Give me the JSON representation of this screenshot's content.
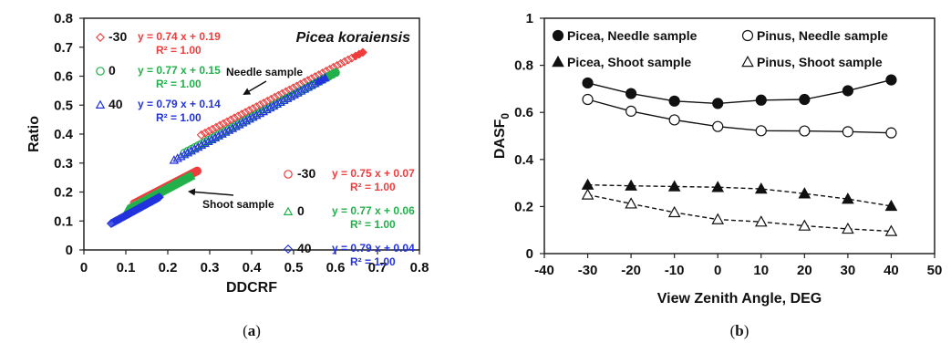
{
  "chart_data": [
    {
      "type": "scatter",
      "panel_label": "(a)",
      "panel_letter": "a",
      "title": "Picea koraiensis",
      "xlabel": "DDCRF",
      "ylabel": "Ratio",
      "xlim": [
        0,
        0.8
      ],
      "ylim": [
        0,
        0.8
      ],
      "x_ticks": [
        "0",
        "0.1",
        "0.2",
        "0.3",
        "0.4",
        "0.5",
        "0.6",
        "0.7",
        "0.8"
      ],
      "y_ticks": [
        "0",
        "0.1",
        "0.2",
        "0.3",
        "0.4",
        "0.5",
        "0.6",
        "0.7",
        "0.8"
      ],
      "grid": false,
      "annotations": {
        "needle": "Needle sample",
        "shoot": "Shoot sample"
      },
      "series": [
        {
          "group": "needle",
          "name": "-30",
          "marker": "diamond",
          "color": "#f03c3c",
          "slope": 0.74,
          "intercept": 0.19,
          "x_range": [
            0.28,
            0.665
          ],
          "equation": "y = 0.74 x + 0.19",
          "r2": "R² = 1.00"
        },
        {
          "group": "needle",
          "name": "0",
          "marker": "circle",
          "color": "#22b04a",
          "slope": 0.77,
          "intercept": 0.15,
          "x_range": [
            0.24,
            0.6
          ],
          "equation": "y = 0.77 x + 0.15",
          "r2": "R² = 1.00"
        },
        {
          "group": "needle",
          "name": "40",
          "marker": "triangle",
          "color": "#2233dd",
          "slope": 0.79,
          "intercept": 0.14,
          "x_range": [
            0.215,
            0.575
          ],
          "equation": "y = 0.79 x + 0.14",
          "r2": "R² = 1.00"
        },
        {
          "group": "shoot",
          "name": "-30",
          "marker": "circle",
          "color": "#f03c3c",
          "slope": 0.75,
          "intercept": 0.07,
          "x_range": [
            0.12,
            0.27
          ],
          "equation": "y = 0.75 x + 0.07",
          "r2": "R² = 1.00"
        },
        {
          "group": "shoot",
          "name": "0",
          "marker": "triangle",
          "color": "#22b04a",
          "slope": 0.77,
          "intercept": 0.06,
          "x_range": [
            0.105,
            0.255
          ],
          "equation": "y = 0.77 x + 0.06",
          "r2": "R² = 1.00"
        },
        {
          "group": "shoot",
          "name": "40",
          "marker": "diamond",
          "color": "#2233dd",
          "slope": 0.79,
          "intercept": 0.04,
          "x_range": [
            0.065,
            0.18
          ],
          "equation": "y = 0.79 x + 0.04",
          "r2": "R² = 1.00"
        }
      ]
    },
    {
      "type": "line",
      "panel_label": "(b)",
      "panel_letter": "b",
      "xlabel": "View Zenith Angle, DEG",
      "ylabel": "DASF",
      "ylabel_sub": "0",
      "xlim": [
        -40,
        50
      ],
      "ylim": [
        0,
        1
      ],
      "x_ticks": [
        "-40",
        "-30",
        "-20",
        "-10",
        "0",
        "10",
        "20",
        "30",
        "40",
        "50"
      ],
      "y_ticks": [
        "0",
        "0.2",
        "0.4",
        "0.6",
        "0.8",
        "1"
      ],
      "grid": false,
      "legend_position": "top",
      "x": [
        -30,
        -20,
        -10,
        0,
        10,
        20,
        30,
        40
      ],
      "series": [
        {
          "name": "Picea, Needle sample",
          "marker": "circle",
          "filled": true,
          "dashed": false,
          "values": [
            0.725,
            0.68,
            0.648,
            0.638,
            0.652,
            0.655,
            0.692,
            0.738
          ]
        },
        {
          "name": "Pinus, Needle sample",
          "marker": "circle",
          "filled": false,
          "dashed": false,
          "values": [
            0.655,
            0.605,
            0.568,
            0.54,
            0.522,
            0.521,
            0.518,
            0.513
          ]
        },
        {
          "name": "Picea, Shoot sample",
          "marker": "triangle",
          "filled": true,
          "dashed": true,
          "values": [
            0.292,
            0.288,
            0.285,
            0.282,
            0.275,
            0.255,
            0.232,
            0.202
          ]
        },
        {
          "name": "Pinus, Shoot sample",
          "marker": "triangle",
          "filled": false,
          "dashed": true,
          "values": [
            0.25,
            0.212,
            0.175,
            0.145,
            0.135,
            0.118,
            0.105,
            0.095
          ]
        }
      ]
    }
  ]
}
